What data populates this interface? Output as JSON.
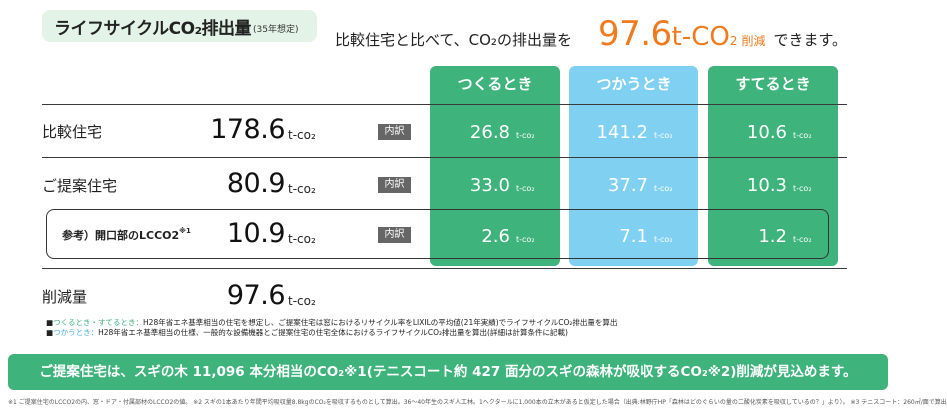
{
  "title": {
    "main": "ライフサイクルCO₂排出量",
    "sub": "(35年想定)"
  },
  "headline": {
    "prefix": "比較住宅と比べて、CO₂の排出量を",
    "value": "97.6",
    "unit": "t-CO",
    "unit_sub": "2",
    "reduced": "削減",
    "suffix": "できます。"
  },
  "columns": [
    "つくるとき",
    "つかうとき",
    "すてるとき"
  ],
  "unit_label": "t-co₂",
  "badge_label": "内訳",
  "rows": [
    {
      "label": "比較住宅",
      "total": "178.6",
      "cells": [
        "26.8",
        "141.2",
        "10.6"
      ]
    },
    {
      "label": "ご提案住宅",
      "total": "80.9",
      "cells": [
        "33.0",
        "37.7",
        "10.3"
      ]
    },
    {
      "label": "参考）開口部のLCCO2",
      "label_sup": "※1",
      "total": "10.9",
      "cells": [
        "2.6",
        "7.1",
        "1.2"
      ]
    },
    {
      "label": "削減量",
      "total": "97.6"
    }
  ],
  "notes": [
    {
      "marker": "■",
      "key": "つくるとき・すてるとき：",
      "text": "H28年省エネ基準相当の住宅を想定し、ご提案住宅は窓におけるリサイクル率をLIXILの平均値(21年実績)でライフサイクルCO₂排出量を算出"
    },
    {
      "marker": "■",
      "key": "つかうとき：",
      "text": "H28年省エネ基準相当の仕様、一般的な設備機器とご提案住宅の住宅全体におけるライフサイクルCO₂排出量を算出(詳細は計算条件に記載)"
    }
  ],
  "banner": "ご提案住宅は、スギの木 11,096 本分相当のCO₂※1(テニスコート約 427 面分のスギの森林が吸収するCO₂※2)削減が見込めます。",
  "footnote": "※1 ご提案住宅のLCCO2の内、窓・ドア・付属部材のLCCO2の値。 ※2 スギの1本あたり年間平均吸収量8.8kgのCO₂を吸収するものとして算出。36～40年生のスギ人工林。1ヘクタールに1,000本の立木があると仮定した場合（出典:林野庁HP「森林はどのぐらいの量の二酸化炭素を吸収しているの？」より）。 ※3 テニスコート：260㎡/面で算出"
}
